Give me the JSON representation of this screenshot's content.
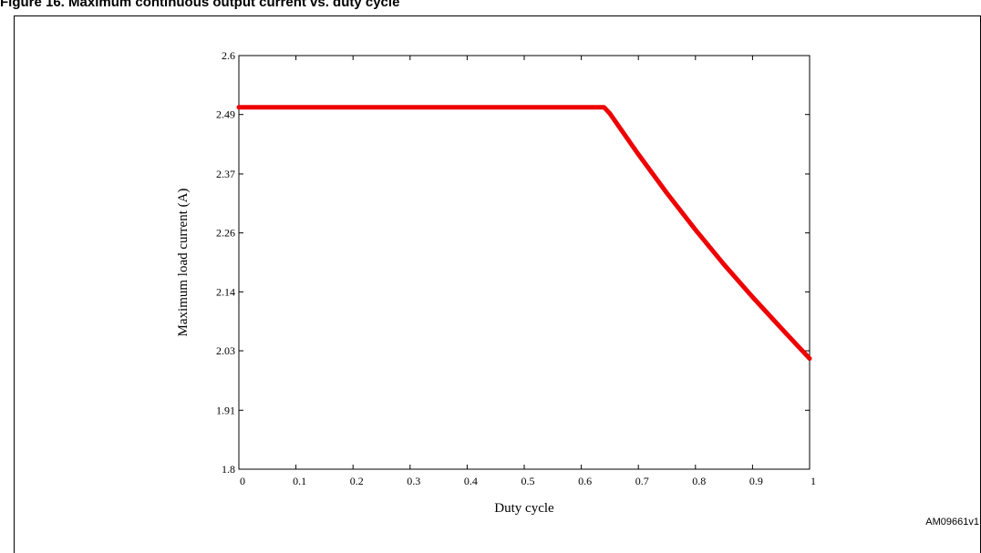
{
  "figure": {
    "caption": "Figure 16. Maximum continuous output current vs. duty cycle",
    "code": "AM09661v1"
  },
  "chart_data": {
    "type": "line",
    "title": "",
    "xlabel": "Duty cycle",
    "ylabel": "Maximum load current (A)",
    "xlim": [
      0,
      1
    ],
    "ylim": [
      1.8,
      2.6
    ],
    "x_ticks": [
      0,
      0.1,
      0.2,
      0.3,
      0.4,
      0.5,
      0.6,
      0.7,
      0.8,
      0.9,
      1
    ],
    "x_tick_labels": [
      "0",
      "0.1",
      "0.2",
      "0.3",
      "0.4",
      "0.5",
      "0.6",
      "0.7",
      "0.8",
      "0.9",
      "1"
    ],
    "y_ticks": [
      1.8,
      1.914,
      2.029,
      2.143,
      2.257,
      2.371,
      2.486,
      2.6
    ],
    "y_tick_labels": [
      "1.8",
      "1.91",
      "2.03",
      "2.14",
      "2.26",
      "2.37",
      "2.49",
      "2.6"
    ],
    "grid": false,
    "legend": "none",
    "series": [
      {
        "color": "#ee0000",
        "x": [
          0,
          0.1,
          0.2,
          0.3,
          0.4,
          0.5,
          0.6,
          0.64,
          0.65,
          0.7,
          0.75,
          0.8,
          0.85,
          0.9,
          0.95,
          1.0
        ],
        "y": [
          2.5,
          2.5,
          2.5,
          2.5,
          2.5,
          2.5,
          2.5,
          2.5,
          2.488,
          2.409,
          2.334,
          2.263,
          2.196,
          2.133,
          2.073,
          2.014
        ]
      }
    ]
  }
}
